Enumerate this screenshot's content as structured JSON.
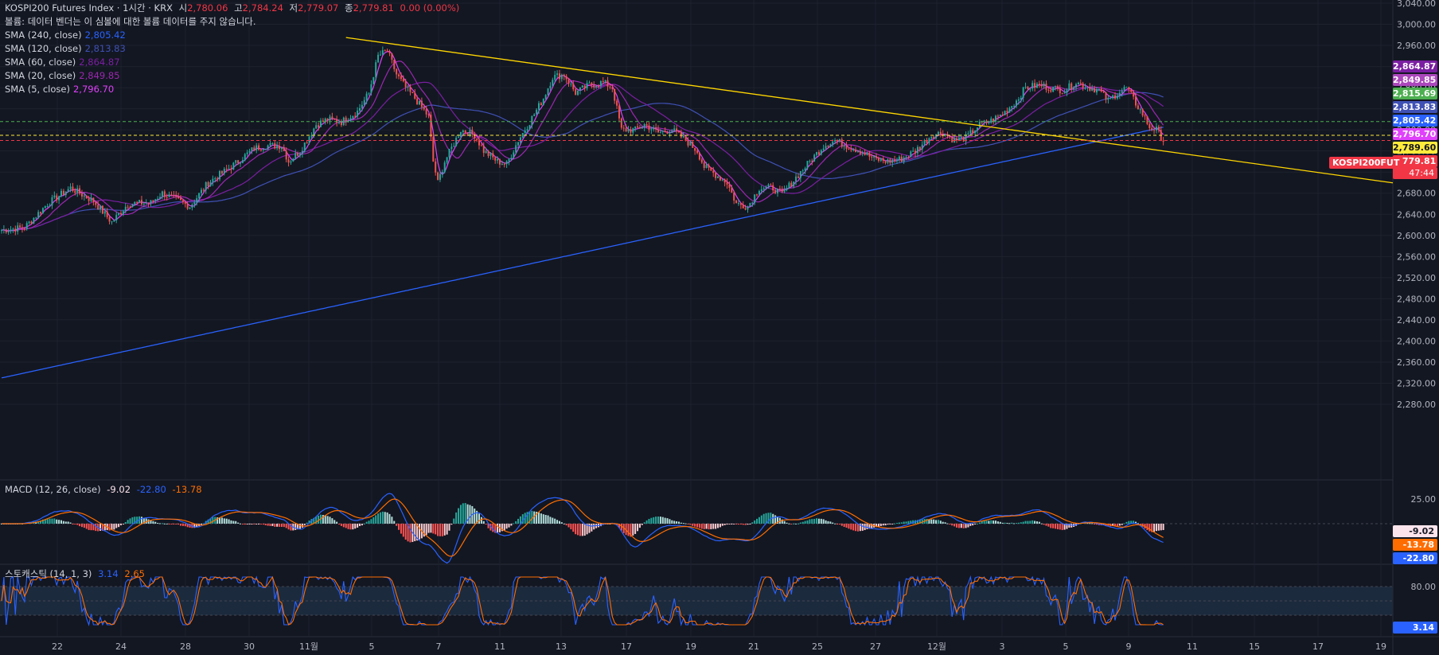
{
  "header": {
    "symbol": "KOSPI200 Futures Index · 1시간 · KRX",
    "open_label": "시",
    "open": "2,780.06",
    "high_label": "고",
    "high": "2,784.24",
    "low_label": "저",
    "low": "2,779.07",
    "close_label": "종",
    "close": "2,779.81",
    "change": "0.00 (0.00%)",
    "volume_notice": "볼륨: 데이터 벤더는 이 심볼에 대한 볼륨 데이터를 주지 않습니다."
  },
  "sma_legend": [
    {
      "label": "SMA (240, close)",
      "value": "2,805.42",
      "color": "#2962ff"
    },
    {
      "label": "SMA (120, close)",
      "value": "2,813.83",
      "color": "#3f51b5"
    },
    {
      "label": "SMA (60, close)",
      "value": "2,864.87",
      "color": "#7b1fa2"
    },
    {
      "label": "SMA (20, close)",
      "value": "2,849.85",
      "color": "#9c27b0"
    },
    {
      "label": "SMA (5, close)",
      "value": "2,796.70",
      "color": "#e040fb"
    }
  ],
  "macd_legend": {
    "label": "MACD (12, 26, close)",
    "hist": "-9.02",
    "macd": "-22.80",
    "signal": "-13.78"
  },
  "stoch_legend": {
    "label": "스토캐스틱 (14, 1, 3)",
    "k": "3.14",
    "d": "2.65"
  },
  "price_tags": [
    {
      "text": "2,864.87",
      "price": 2864.87,
      "bg": "#7b1fa2",
      "fg": "#ffffff"
    },
    {
      "text": "2,849.85",
      "price": 2849.85,
      "bg": "#ab47bc",
      "fg": "#ffffff"
    },
    {
      "text": "2,815.69",
      "price": 2815.69,
      "bg": "#4caf50",
      "fg": "#ffffff"
    },
    {
      "text": "2,813.83",
      "price": 2813.83,
      "bg": "#3f51b5",
      "fg": "#ffffff"
    },
    {
      "text": "2,805.42",
      "price": 2805.42,
      "bg": "#2962ff",
      "fg": "#ffffff"
    },
    {
      "text": "2,796.70",
      "price": 2796.7,
      "bg": "#e040fb",
      "fg": "#ffffff"
    },
    {
      "text": "2,789.60",
      "price": 2789.6,
      "bg": "#ffeb3b",
      "fg": "#131722"
    },
    {
      "text": "2,779.81",
      "price": 2779.81,
      "bg": "#f23645",
      "fg": "#ffffff"
    }
  ],
  "countdown": "47:44",
  "symbol_tag": "KOSPI200FUT",
  "macd_tags": [
    {
      "text": "-9.02",
      "bg": "#fce4ec",
      "fg": "#131722"
    },
    {
      "text": "-13.78",
      "bg": "#ff6d00",
      "fg": "#ffffff"
    },
    {
      "text": "-22.80",
      "bg": "#2962ff",
      "fg": "#ffffff"
    }
  ],
  "stoch_tag": {
    "text": "3.14",
    "bg": "#2962ff",
    "fg": "#ffffff"
  },
  "chart_data": [
    {
      "type": "candlestick",
      "title": "KOSPI200 Futures Index · 1시간 · KRX",
      "ylim": [
        2250,
        3040
      ],
      "y_ticks": [
        3040,
        3000,
        2960,
        2920,
        2880,
        2840,
        2800,
        2760,
        2720,
        2680,
        2640,
        2600,
        2560,
        2520,
        2480,
        2440,
        2400,
        2360,
        2320,
        2280
      ],
      "x_ticks": [
        "22",
        "24",
        "28",
        "30",
        "11월",
        "5",
        "7",
        "11",
        "13",
        "17",
        "19",
        "21",
        "25",
        "27",
        "12월",
        "3",
        "5",
        "9",
        "11",
        "15",
        "17",
        "19"
      ],
      "close_path": [
        [
          0,
          2610
        ],
        [
          10,
          2615
        ],
        [
          20,
          2660
        ],
        [
          30,
          2690
        ],
        [
          40,
          2665
        ],
        [
          48,
          2625
        ],
        [
          55,
          2660
        ],
        [
          65,
          2662
        ],
        [
          70,
          2680
        ],
        [
          82,
          2655
        ],
        [
          90,
          2700
        ],
        [
          100,
          2730
        ],
        [
          110,
          2765
        ],
        [
          115,
          2770
        ],
        [
          122,
          2770
        ],
        [
          125,
          2740
        ],
        [
          130,
          2760
        ],
        [
          137,
          2810
        ],
        [
          142,
          2820
        ],
        [
          148,
          2815
        ],
        [
          155,
          2835
        ],
        [
          160,
          2870
        ],
        [
          164,
          2940
        ],
        [
          168,
          2950
        ],
        [
          172,
          2905
        ],
        [
          176,
          2880
        ],
        [
          180,
          2860
        ],
        [
          186,
          2825
        ],
        [
          188,
          2740
        ],
        [
          190,
          2700
        ],
        [
          193,
          2740
        ],
        [
          200,
          2800
        ],
        [
          206,
          2790
        ],
        [
          210,
          2760
        ],
        [
          216,
          2740
        ],
        [
          220,
          2735
        ],
        [
          225,
          2780
        ],
        [
          230,
          2815
        ],
        [
          236,
          2860
        ],
        [
          240,
          2900
        ],
        [
          245,
          2905
        ],
        [
          250,
          2870
        ],
        [
          256,
          2885
        ],
        [
          262,
          2890
        ],
        [
          266,
          2880
        ],
        [
          270,
          2800
        ],
        [
          276,
          2800
        ],
        [
          280,
          2810
        ],
        [
          286,
          2795
        ],
        [
          292,
          2800
        ],
        [
          298,
          2780
        ],
        [
          303,
          2760
        ],
        [
          306,
          2730
        ],
        [
          310,
          2718
        ],
        [
          316,
          2700
        ],
        [
          320,
          2660
        ],
        [
          325,
          2655
        ],
        [
          330,
          2690
        ],
        [
          336,
          2690
        ],
        [
          340,
          2678
        ],
        [
          346,
          2710
        ],
        [
          352,
          2740
        ],
        [
          358,
          2770
        ],
        [
          363,
          2780
        ],
        [
          368,
          2770
        ],
        [
          374,
          2760
        ],
        [
          380,
          2745
        ],
        [
          386,
          2740
        ],
        [
          392,
          2745
        ],
        [
          398,
          2760
        ],
        [
          405,
          2790
        ],
        [
          410,
          2795
        ],
        [
          415,
          2780
        ],
        [
          420,
          2785
        ],
        [
          426,
          2810
        ],
        [
          430,
          2815
        ],
        [
          436,
          2830
        ],
        [
          442,
          2855
        ],
        [
          446,
          2880
        ],
        [
          452,
          2885
        ],
        [
          458,
          2878
        ],
        [
          463,
          2875
        ],
        [
          468,
          2890
        ],
        [
          474,
          2880
        ],
        [
          478,
          2875
        ],
        [
          482,
          2855
        ],
        [
          486,
          2870
        ],
        [
          490,
          2880
        ],
        [
          494,
          2850
        ],
        [
          497,
          2830
        ],
        [
          500,
          2805
        ],
        [
          503,
          2800
        ],
        [
          506,
          2780
        ]
      ],
      "sma_values": {
        "sma240": 2805.42,
        "sma120": 2813.83,
        "sma60": 2864.87,
        "sma20": 2849.85,
        "sma5": 2796.7
      },
      "trendline": [
        [
          150,
          2975
        ],
        [
          506,
          2760
        ]
      ],
      "horizontal_lines": [
        2815.69,
        2789.6,
        2779.81
      ]
    },
    {
      "type": "bar",
      "title": "MACD (12, 26, close)",
      "y_ticks": [
        25.0
      ],
      "hist": [
        -9.02
      ],
      "macd": [
        -22.8
      ],
      "signal": [
        -13.78
      ]
    },
    {
      "type": "line",
      "title": "스토캐스틱 (14, 1, 3)",
      "y_ticks": [
        80.0
      ],
      "ylim": [
        0,
        100
      ],
      "k": [
        3.14
      ],
      "d": [
        2.65
      ]
    }
  ]
}
